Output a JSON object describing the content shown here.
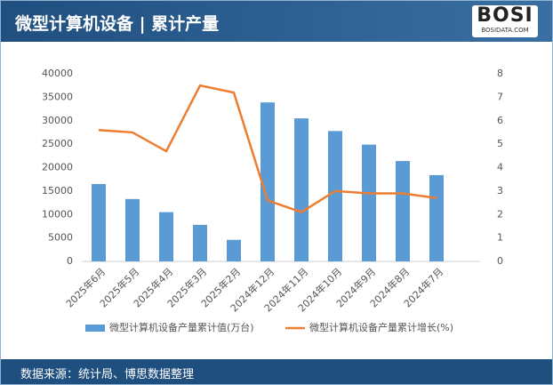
{
  "header": {
    "title": "微型计算机设备 | 累计产量",
    "logo": "BOSI",
    "logo_sub": "BOSIDATA.COM"
  },
  "footer": {
    "source": "数据来源：统计局、博思数据整理"
  },
  "chart_data": {
    "type": "bar-line",
    "categories": [
      "2025年6月",
      "2025年5月",
      "2025年4月",
      "2025年3月",
      "2025年2月",
      "2024年12月",
      "2024年11月",
      "2024年10月",
      "2024年9月",
      "2024年8月",
      "2024年7月"
    ],
    "series": [
      {
        "name": "微型计算机设备产量累计值(万台)",
        "type": "bar",
        "color": "#5b9bd5",
        "values": [
          16500,
          13300,
          10500,
          7800,
          4600,
          33900,
          30500,
          27800,
          24900,
          21400,
          18400
        ]
      },
      {
        "name": "微型计算机设备产量累计增长(%)",
        "type": "line",
        "axis": "y2",
        "color": "#ed7d31",
        "values": [
          5.6,
          5.5,
          4.7,
          7.5,
          7.2,
          2.6,
          2.1,
          3.0,
          2.9,
          2.9,
          2.7
        ]
      }
    ],
    "ylim": [
      0,
      40000
    ],
    "yticks": [
      0,
      5000,
      10000,
      15000,
      20000,
      25000,
      30000,
      35000,
      40000
    ],
    "y2lim": [
      0,
      8
    ],
    "y2ticks": [
      0,
      1,
      2,
      3,
      4,
      5,
      6,
      7,
      8
    ],
    "legend": "bottom"
  }
}
